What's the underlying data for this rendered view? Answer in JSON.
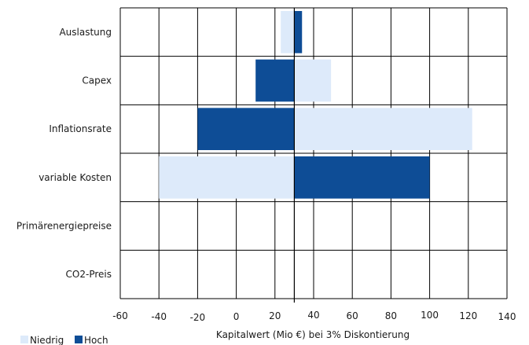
{
  "chart_data": {
    "type": "bar",
    "orientation": "horizontal",
    "baseline": 30,
    "categories": [
      "Auslastung",
      "Capex",
      "Inflationsrate",
      "variable Kosten",
      "Primärenergiepreise",
      "CO2-Preis"
    ],
    "series": [
      {
        "name": "Niedrig",
        "color": "#ddeafa",
        "values": [
          23,
          49,
          122,
          -40,
          null,
          null
        ]
      },
      {
        "name": "Hoch",
        "color": "#0e4d96",
        "values": [
          34,
          10,
          -20,
          100,
          null,
          null
        ]
      }
    ],
    "xlim": [
      -60,
      140
    ],
    "xticks": [
      -60,
      -40,
      -20,
      0,
      20,
      40,
      60,
      80,
      100,
      120,
      140
    ],
    "xlabel": "Kapitalwert (Mio €) bei 3% Diskontierung",
    "grid": true,
    "legend_position": "bottom-left"
  }
}
